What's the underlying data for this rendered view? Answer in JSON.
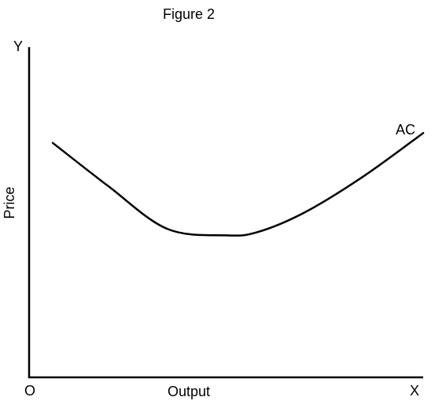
{
  "chart_data": {
    "type": "line",
    "title": "Figure 2",
    "xlabel": "Output",
    "ylabel": "Price",
    "origin_label": "O",
    "x_axis_label": "X",
    "y_axis_label": "Y",
    "ticks": "none",
    "grid": false,
    "colors": {
      "line": "#000000",
      "axes": "#000000",
      "background": "#ffffff"
    },
    "series": [
      {
        "name": "AC",
        "x": [
          0.06,
          0.2,
          0.35,
          0.5,
          0.58,
          0.7,
          0.85,
          1.0
        ],
        "y": [
          0.71,
          0.58,
          0.45,
          0.43,
          0.44,
          0.5,
          0.61,
          0.74
        ]
      }
    ]
  }
}
